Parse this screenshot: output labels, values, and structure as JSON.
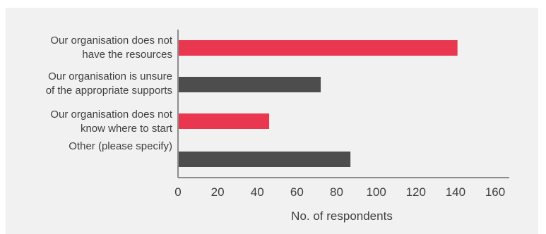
{
  "chart_data": {
    "type": "bar",
    "orientation": "horizontal",
    "categories": [
      [
        "Our organisation does not",
        "have the resources"
      ],
      [
        "Our organisation is unsure",
        "of the appropriate supports"
      ],
      [
        "Our organisation does not",
        "know where to start"
      ],
      [
        "Other (please specify)"
      ]
    ],
    "values": [
      141,
      72,
      46,
      87
    ],
    "colors": [
      "#e8374f",
      "#4d4d4d",
      "#e8374f",
      "#4d4d4d"
    ],
    "xlabel": "No. of respondents",
    "xlim": [
      0,
      160
    ],
    "xticks": [
      "0",
      "20",
      "40",
      "60",
      "80",
      "100",
      "120",
      "140",
      "160"
    ],
    "grid": false,
    "legend": "none"
  }
}
